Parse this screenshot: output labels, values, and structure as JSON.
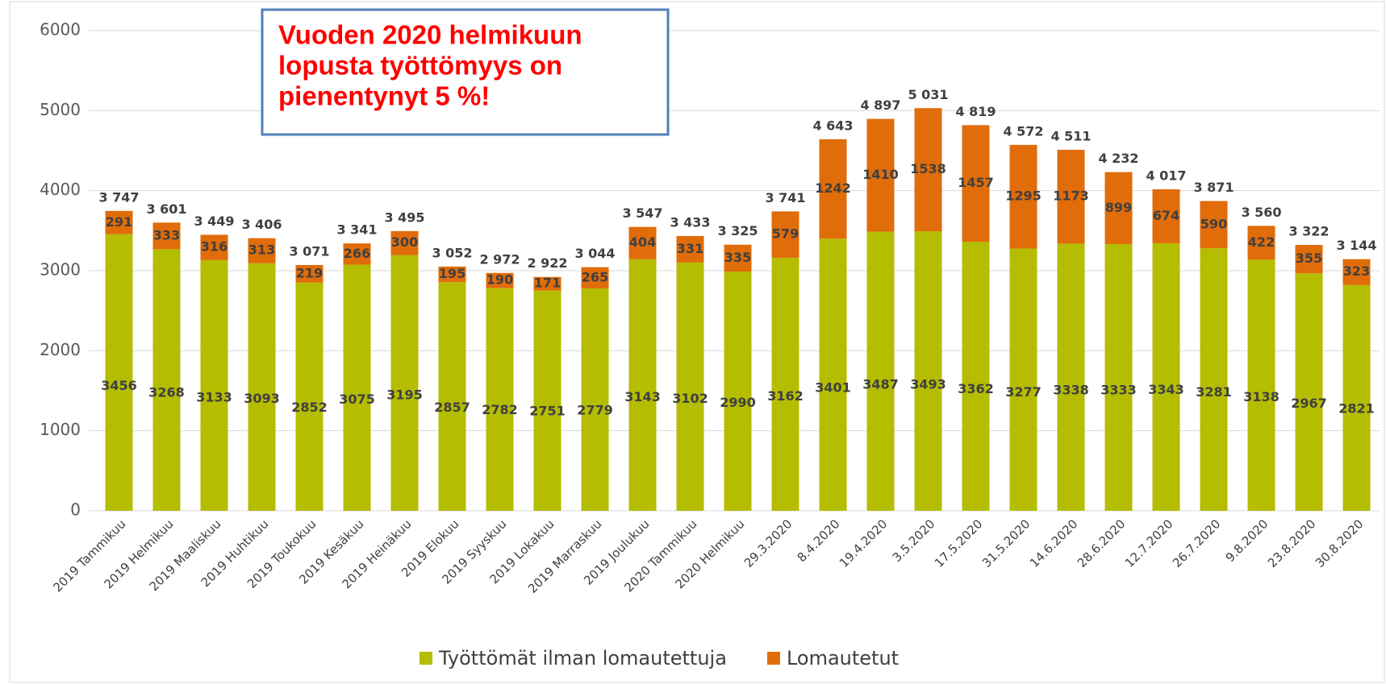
{
  "chart_data": {
    "type": "stacked_bar",
    "annotation": [
      "Vuoden 2020 helmikuun",
      "lopusta työttömyys on",
      "pienentynyt 5 %!"
    ],
    "categories": [
      "2019 Tammikuu",
      "2019 Helmikuu",
      "2019 Maaliskuu",
      "2019 Huhtikuu",
      "2019 Toukokuu",
      "2019 Kesäkuu",
      "2019 Heinäkuu",
      "2019 Elokuu",
      "2019 Syyskuu",
      "2019 Lokakuu",
      "2019 Marraskuu",
      "2019 Joulukuu",
      "2020 Tammikuu",
      "2020 Helmikuu",
      "29.3.2020",
      "8.4.2020",
      "19.4.2020",
      "3.5.2020",
      "17.5.2020",
      "31.5.2020",
      "14.6.2020",
      "28.6.2020",
      "12.7.2020",
      "26.7.2020",
      "9.8.2020",
      "23.8.2020",
      "30.8.2020"
    ],
    "series": [
      {
        "name": "Työttömät ilman lomautettuja",
        "color": "#b5bd00",
        "values": [
          3456,
          3268,
          3133,
          3093,
          2852,
          3075,
          3195,
          2857,
          2782,
          2751,
          2779,
          3143,
          3102,
          2990,
          3162,
          3401,
          3487,
          3493,
          3362,
          3277,
          3338,
          3333,
          3343,
          3281,
          3138,
          2967,
          2821
        ]
      },
      {
        "name": "Lomautetut",
        "color": "#e06c0a",
        "values": [
          291,
          333,
          316,
          313,
          219,
          266,
          300,
          195,
          190,
          171,
          265,
          404,
          331,
          335,
          579,
          1242,
          1410,
          1538,
          1457,
          1295,
          1173,
          899,
          674,
          590,
          422,
          355,
          323
        ]
      }
    ],
    "totals": {
      "values": [
        3747,
        3601,
        3449,
        3406,
        3071,
        3341,
        3495,
        3052,
        2972,
        2922,
        3044,
        3547,
        3433,
        3325,
        3741,
        4643,
        4897,
        5031,
        4819,
        4572,
        4511,
        4232,
        4017,
        3871,
        3560,
        3322,
        3144
      ],
      "value_labels": [
        "3 747",
        "3 601",
        "3 449",
        "3 406",
        "3 071",
        "3 341",
        "3 495",
        "3 052",
        "2 972",
        "2 922",
        "3 044",
        "3 547",
        "3 433",
        "3 325",
        "3 741",
        "4 643",
        "4 897",
        "5 031",
        "4 819",
        "4 572",
        "4 511",
        "4 232",
        "4 017",
        "3 871",
        "3 560",
        "3 322",
        "3 144"
      ]
    },
    "ylim": [
      0,
      6000
    ],
    "yticks": [
      0,
      1000,
      2000,
      3000,
      4000,
      5000,
      6000
    ],
    "grid": true,
    "legend": "bottom"
  }
}
